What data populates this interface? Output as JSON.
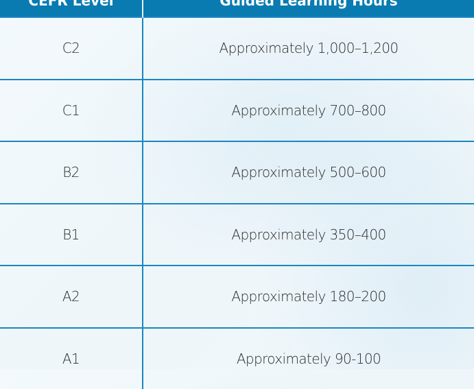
{
  "table": {
    "headers": [
      "CEFR Level",
      "Guided Learning Hours"
    ],
    "rows": [
      {
        "level": "C2",
        "hours": "Approximately 1,000–1,200"
      },
      {
        "level": "C1",
        "hours": "Approximately 700–800"
      },
      {
        "level": "B2",
        "hours": "Approximately 500–600"
      },
      {
        "level": "B1",
        "hours": "Approximately 350–400"
      },
      {
        "level": "A2",
        "hours": "Approximately 180–200"
      },
      {
        "level": "A1",
        "hours": "Approximately 90-100"
      }
    ]
  },
  "colors": {
    "header_bg": "#0a7bb0",
    "border": "#1a86bf",
    "text": "#2a2a2a"
  }
}
